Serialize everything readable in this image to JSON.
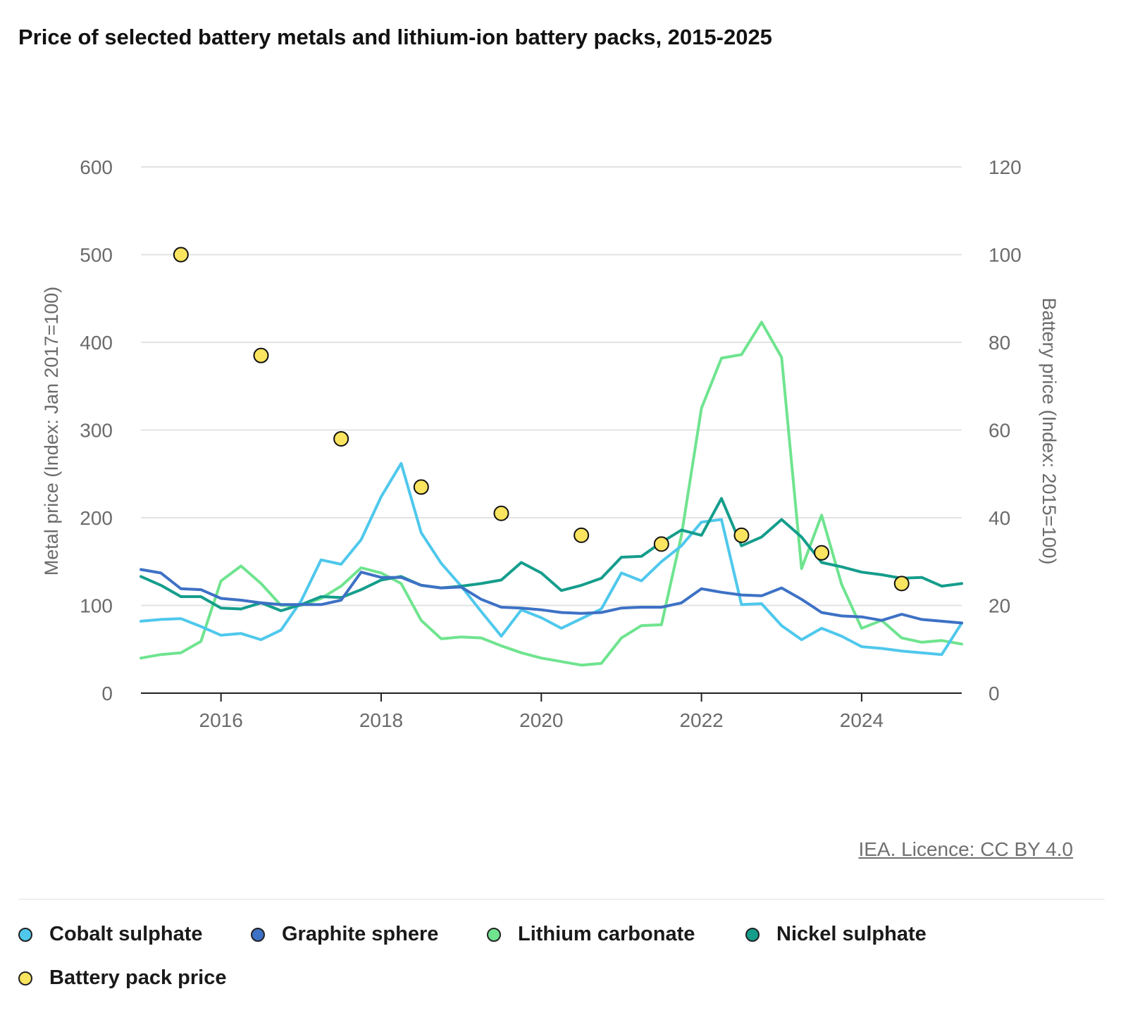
{
  "title": "Price of selected battery metals and lithium-ion battery packs, 2015-2025",
  "licence": "IEA. Licence: CC BY 4.0",
  "chart_data": {
    "type": "line",
    "title": "Price of selected battery metals and lithium-ion battery packs, 2015-2025",
    "ylabel": "Metal price (Index: Jan 2017=100)",
    "y2label": "Battery price (Index: 2015=100)",
    "ylim": [
      0,
      600
    ],
    "y2lim": [
      0,
      120
    ],
    "yticks": [
      "0",
      "100",
      "200",
      "300",
      "400",
      "500",
      "600"
    ],
    "y2ticks": [
      "0",
      "20",
      "40",
      "60",
      "80",
      "100",
      "120"
    ],
    "xlim": [
      2015,
      2025.25
    ],
    "xticks": [
      "2016",
      "2018",
      "2020",
      "2022",
      "2024"
    ],
    "grid": true,
    "legend_position": "bottom",
    "x": [
      2015.0,
      2015.25,
      2015.5,
      2015.75,
      2016.0,
      2016.25,
      2016.5,
      2016.75,
      2017.0,
      2017.25,
      2017.5,
      2017.75,
      2018.0,
      2018.25,
      2018.5,
      2018.75,
      2019.0,
      2019.25,
      2019.5,
      2019.75,
      2020.0,
      2020.25,
      2020.5,
      2020.75,
      2021.0,
      2021.25,
      2021.5,
      2021.75,
      2022.0,
      2022.25,
      2022.5,
      2022.75,
      2023.0,
      2023.25,
      2023.5,
      2023.75,
      2024.0,
      2024.25,
      2024.5,
      2024.75,
      2025.0,
      2025.25
    ],
    "series": [
      {
        "name": "Cobalt sulphate",
        "color": "#4fc8ec",
        "values": [
          82,
          84,
          85,
          76,
          66,
          68,
          61,
          72,
          105,
          152,
          147,
          175,
          224,
          262,
          183,
          148,
          122,
          93,
          65,
          95,
          86,
          74,
          85,
          96,
          137,
          128,
          150,
          168,
          195,
          198,
          101,
          102,
          77,
          61,
          74,
          65,
          53,
          51,
          48,
          46,
          44,
          80
        ]
      },
      {
        "name": "Graphite sphere",
        "color": "#3d71c5",
        "values": [
          141,
          137,
          119,
          118,
          108,
          106,
          103,
          101,
          101,
          101,
          106,
          138,
          132,
          132,
          123,
          120,
          121,
          107,
          98,
          97,
          95,
          92,
          91,
          92,
          97,
          98,
          98,
          103,
          119,
          115,
          112,
          111,
          120,
          107,
          92,
          88,
          87,
          83,
          90,
          84,
          82,
          80
        ]
      },
      {
        "name": "Lithium carbonate",
        "color": "#6fe48f",
        "values": [
          40,
          44,
          46,
          59,
          128,
          145,
          125,
          100,
          100,
          108,
          122,
          143,
          137,
          125,
          83,
          62,
          64,
          63,
          54,
          46,
          40,
          36,
          32,
          34,
          63,
          77,
          78,
          180,
          325,
          382,
          386,
          423,
          383,
          142,
          203,
          124,
          74,
          83,
          63,
          58,
          60,
          56
        ]
      },
      {
        "name": "Nickel sulphate",
        "color": "#159d8c",
        "values": [
          133,
          123,
          110,
          110,
          97,
          96,
          103,
          94,
          101,
          110,
          109,
          118,
          129,
          133,
          123,
          120,
          122,
          125,
          129,
          149,
          137,
          117,
          123,
          131,
          155,
          156,
          172,
          186,
          180,
          222,
          168,
          178,
          198,
          178,
          149,
          144,
          138,
          135,
          131,
          132,
          122,
          125
        ]
      },
      {
        "name": "Battery pack price",
        "color": "#fbe45f",
        "axis": "right",
        "style": "points",
        "x": [
          2015.5,
          2016.5,
          2017.5,
          2018.5,
          2019.5,
          2020.5,
          2021.5,
          2022.5,
          2023.5,
          2024.5
        ],
        "values": [
          100,
          77,
          58,
          47,
          41,
          36,
          34,
          36,
          32,
          25
        ]
      }
    ]
  },
  "legend": [
    {
      "label": "Cobalt sulphate",
      "color": "#4fc8ec"
    },
    {
      "label": "Graphite sphere",
      "color": "#3d71c5"
    },
    {
      "label": "Lithium carbonate",
      "color": "#6fe48f"
    },
    {
      "label": "Nickel sulphate",
      "color": "#159d8c"
    },
    {
      "label": "Battery pack price",
      "color": "#fbe45f"
    }
  ]
}
